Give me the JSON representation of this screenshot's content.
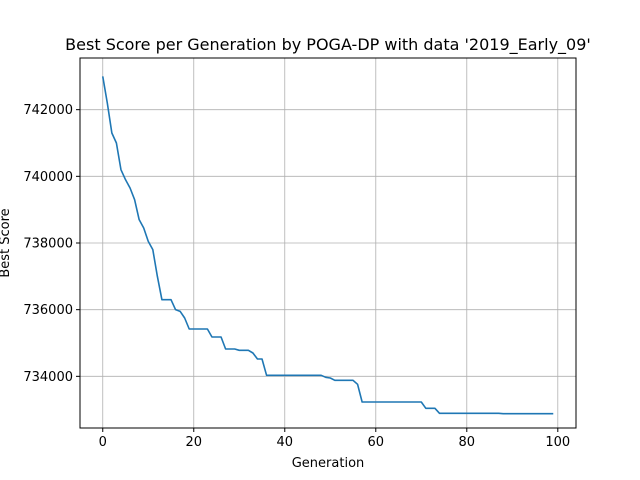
{
  "chart_data": {
    "type": "line",
    "title": "Best Score per Generation by POGA-DP with data '2019_Early_09'",
    "xlabel": "Generation",
    "ylabel": "Best Score",
    "xlim": [
      -5,
      104
    ],
    "ylim": [
      732450,
      743550
    ],
    "xticks": [
      0,
      20,
      40,
      60,
      80,
      100
    ],
    "yticks": [
      734000,
      736000,
      738000,
      740000,
      742000
    ],
    "grid": true,
    "line_color": "#1f77b4",
    "series": [
      {
        "x": [
          0,
          1,
          2,
          3,
          4,
          5,
          6,
          7,
          8,
          9,
          10,
          11,
          12,
          13,
          14,
          15,
          16,
          17,
          18,
          19,
          20,
          21,
          22,
          23,
          24,
          25,
          26,
          27,
          28,
          29,
          30,
          31,
          32,
          33,
          34,
          35,
          36,
          37,
          38,
          39,
          40,
          41,
          42,
          43,
          44,
          45,
          46,
          47,
          48,
          49,
          50,
          51,
          52,
          53,
          54,
          55,
          56,
          57,
          58,
          59,
          60,
          61,
          62,
          63,
          64,
          65,
          66,
          67,
          68,
          69,
          70,
          71,
          72,
          73,
          74,
          75,
          76,
          77,
          78,
          79,
          80,
          81,
          82,
          83,
          84,
          85,
          86,
          87,
          88,
          89,
          90,
          91,
          92,
          93,
          94,
          95,
          96,
          97,
          98,
          99
        ],
        "values": [
          743000,
          742200,
          741300,
          741000,
          740200,
          739900,
          739650,
          739300,
          738700,
          738450,
          738050,
          737800,
          737000,
          736300,
          736300,
          736300,
          736000,
          735950,
          735750,
          735420,
          735420,
          735420,
          735420,
          735420,
          735180,
          735180,
          735180,
          734820,
          734820,
          734820,
          734780,
          734780,
          734780,
          734700,
          734520,
          734520,
          734030,
          734030,
          734030,
          734030,
          734030,
          734030,
          734030,
          734030,
          734030,
          734030,
          734030,
          734030,
          734030,
          733970,
          733950,
          733880,
          733880,
          733880,
          733880,
          733880,
          733760,
          733230,
          733230,
          733230,
          733230,
          733230,
          733230,
          733230,
          733230,
          733230,
          733230,
          733230,
          733230,
          733230,
          733230,
          733040,
          733040,
          733040,
          732890,
          732890,
          732890,
          732890,
          732890,
          732890,
          732890,
          732890,
          732890,
          732890,
          732890,
          732890,
          732890,
          732890,
          732880,
          732880,
          732880,
          732880,
          732880,
          732880,
          732880,
          732880,
          732880,
          732880,
          732880,
          732880
        ]
      }
    ]
  }
}
